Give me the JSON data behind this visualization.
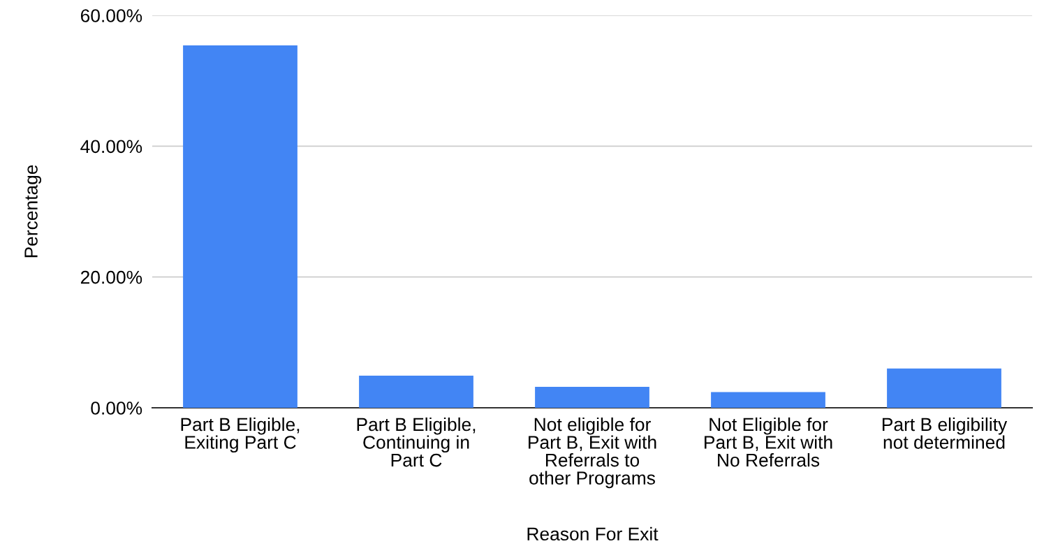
{
  "chart_data": {
    "type": "bar",
    "xlabel": "Reason For Exit",
    "ylabel": "Percentage",
    "categories": [
      "Part B Eligible,\nExiting Part C",
      "Part B Eligible,\nContinuing in\nPart C",
      "Not eligible for\nPart B, Exit with\nReferrals to\nother Programs",
      "Not Eligible for\nPart B, Exit with\nNo Referrals",
      "Part B eligibility\nnot determined"
    ],
    "values": [
      55.4,
      4.9,
      3.2,
      2.4,
      6.0
    ],
    "color": "#4285f4",
    "ylim": [
      0,
      60
    ],
    "yticks": [
      {
        "value": 0,
        "label": "0.00%"
      },
      {
        "value": 20,
        "label": "20.00%"
      },
      {
        "value": 40,
        "label": "40.00%"
      },
      {
        "value": 60,
        "label": "60.00%"
      }
    ],
    "grid": "y",
    "legend": false
  }
}
